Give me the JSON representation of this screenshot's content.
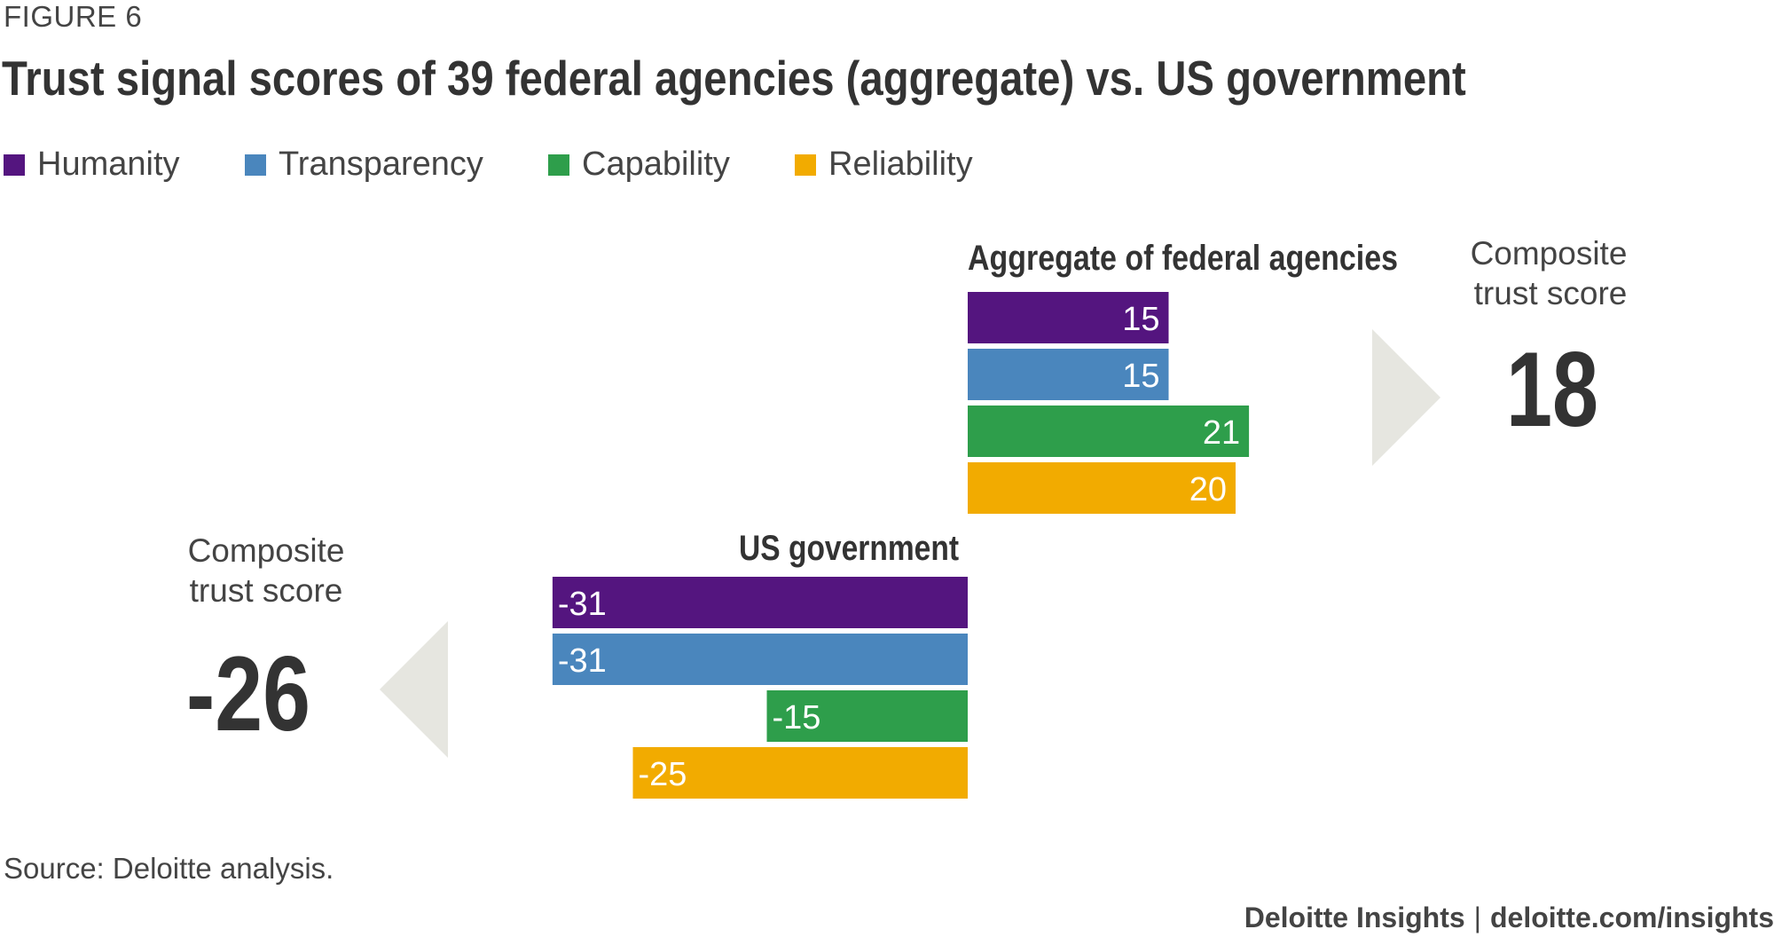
{
  "figure_label": "FIGURE 6",
  "title": "Trust signal scores of 39 federal agencies (aggregate) vs. US government",
  "source": "Source: Deloitte analysis.",
  "footer": {
    "brand": "Deloitte Insights",
    "separator": "|",
    "url": "deloitte.com/insights"
  },
  "colors": {
    "Humanity": "#54157f",
    "Transparency": "#4a86bd",
    "Capability": "#2e9e4b",
    "Reliability": "#f2ab00",
    "arrow": "#e6e6e0",
    "text": "#333333"
  },
  "chart_data": {
    "type": "bar",
    "orientation": "horizontal",
    "title": "Trust signal scores of 39 federal agencies (aggregate) vs. US government",
    "categories": [
      "Humanity",
      "Transparency",
      "Capability",
      "Reliability"
    ],
    "legend": [
      "Humanity",
      "Transparency",
      "Capability",
      "Reliability"
    ],
    "legend_placement": "top-left",
    "groups": [
      {
        "name": "Aggregate of federal agencies",
        "values": [
          15,
          15,
          21,
          20
        ],
        "composite_label": "Composite trust score",
        "composite_label_lines": [
          "Composite",
          "trust score"
        ],
        "composite_score": "18"
      },
      {
        "name": "US government",
        "values": [
          -31,
          -31,
          -15,
          -25
        ],
        "composite_label": "Composite trust score",
        "composite_label_lines": [
          "Composite",
          "trust score"
        ],
        "composite_score": "-26"
      }
    ],
    "axis_visible": false,
    "grid": false
  }
}
